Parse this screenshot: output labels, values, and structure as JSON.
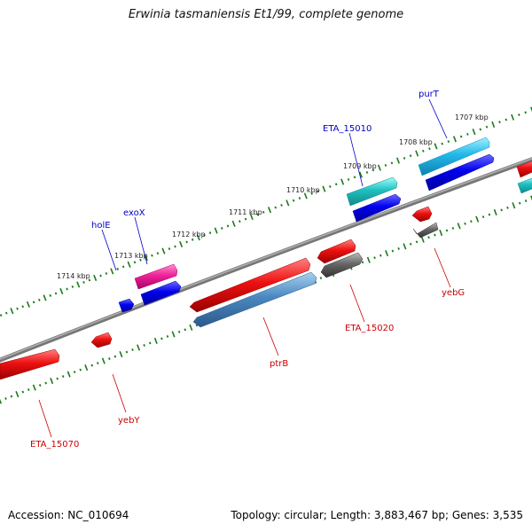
{
  "title": "Erwinia tasmaniensis Et1/99, complete genome",
  "footer": {
    "accession": "Accession: NC_010694",
    "summary": "Topology: circular; Length: 3,883,467 bp; Genes: 3,535"
  },
  "colors": {
    "backbone": "#808080",
    "ticks": "#1a7a1a",
    "label_forward": "#0000cc",
    "label_reverse": "#cc0000"
  },
  "kbp_labels": [
    "1707 kbp",
    "1708 kbp",
    "1709 kbp",
    "1710 kbp",
    "1711 kbp",
    "1712 kbp",
    "1713 kbp",
    "1714 kbp"
  ],
  "genes": [
    {
      "name": "purT",
      "strand": "forward",
      "color": "#22b8e8"
    },
    {
      "name": "ETA_15010",
      "strand": "forward",
      "color": "#20c0c0"
    },
    {
      "name": "exoX",
      "strand": "forward",
      "color": "#ee2299"
    },
    {
      "name": "holE",
      "strand": "forward",
      "color": "#0000ee"
    },
    {
      "name": "ETA_15020",
      "strand": "reverse",
      "color": "#ee1111"
    },
    {
      "name": "yebG",
      "strand": "reverse",
      "color": "#666666"
    },
    {
      "name": "ptrB",
      "strand": "reverse",
      "color": "#4a88c0"
    },
    {
      "name": "yebY",
      "strand": "reverse",
      "color": "#ee1111"
    },
    {
      "name": "ETA_15070",
      "strand": "reverse",
      "color": "#ee1111"
    }
  ]
}
